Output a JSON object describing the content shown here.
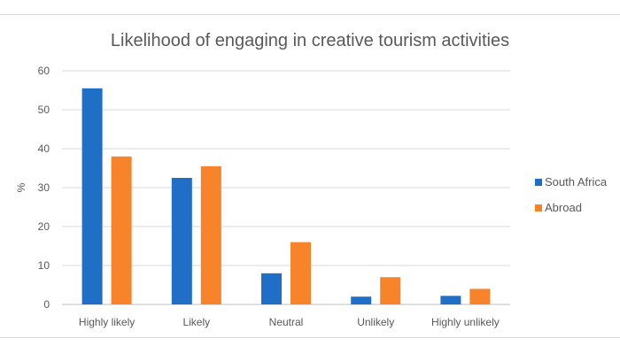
{
  "chart_data": {
    "type": "bar",
    "title": "Likelihood of engaging in creative tourism activities",
    "xlabel": "",
    "ylabel": "%",
    "ylim": [
      0,
      60
    ],
    "yticks": [
      0,
      10,
      20,
      30,
      40,
      50,
      60
    ],
    "grid": true,
    "legend_position": "right",
    "categories": [
      "Highly likely",
      "Likely",
      "Neutral",
      "Unlikely",
      "Highly unlikely"
    ],
    "series": [
      {
        "name": "South Africa",
        "color": "#1f6fc6",
        "values": [
          55.5,
          32.5,
          8,
          2,
          2.2
        ]
      },
      {
        "name": "Abroad",
        "color": "#f7832a",
        "values": [
          38,
          35.5,
          16,
          7,
          4
        ]
      }
    ]
  }
}
